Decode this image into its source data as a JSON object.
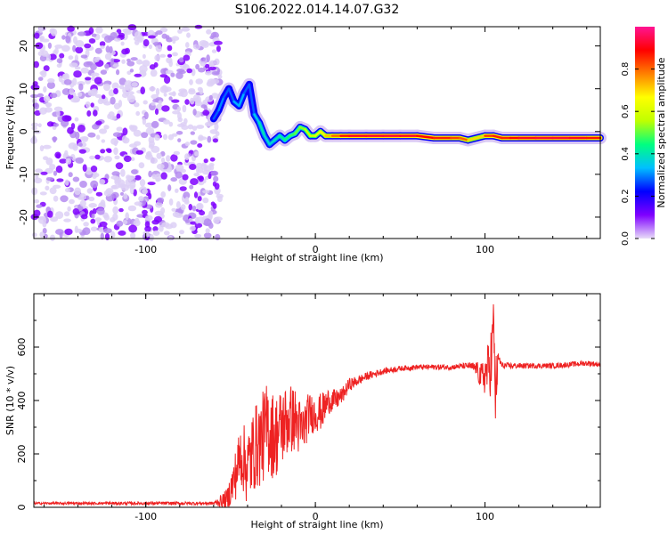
{
  "title": "S106.2022.014.14.07.G32",
  "chart_data": [
    {
      "type": "heatmap",
      "xlabel": "Height of straight line (km)",
      "ylabel": "Frequency (Hz)",
      "xlim": [
        -166,
        168
      ],
      "ylim": [
        -25,
        24.5
      ],
      "xticks": [
        -100,
        0,
        100
      ],
      "yticks": [
        -20,
        -10,
        0,
        10,
        20
      ],
      "colorbar": {
        "label": "Normalized spectral amplitude",
        "range": [
          0,
          1
        ],
        "ticks": [
          0.0,
          0.2,
          0.4,
          0.6,
          0.8
        ],
        "colormap": [
          "#e8dcf8",
          "#7f00ff",
          "#0000ff",
          "#00bfff",
          "#00ff80",
          "#c0ff00",
          "#ffff00",
          "#ff8000",
          "#ff0000",
          "#ff1493"
        ]
      },
      "ridge": {
        "x": [
          -60,
          -57,
          -54,
          -51,
          -48,
          -45,
          -42,
          -39,
          -36,
          -33,
          -30,
          -27,
          -24,
          -21,
          -18,
          -15,
          -12,
          -9,
          -6,
          -3,
          0,
          3,
          6,
          10,
          15,
          20,
          30,
          40,
          50,
          60,
          70,
          80,
          85,
          90,
          95,
          100,
          105,
          110,
          115,
          120,
          130,
          140,
          150,
          160,
          168
        ],
        "freq": [
          3,
          5,
          8,
          10,
          7,
          6,
          9,
          11,
          4,
          2,
          -1,
          -3,
          -2,
          -1,
          -2,
          -1,
          -0.5,
          1,
          0.5,
          -1,
          -1,
          0,
          -1,
          -1,
          -1,
          -1,
          -1,
          -1,
          -1,
          -1,
          -1.5,
          -1.5,
          -1.5,
          -2,
          -1.5,
          -1,
          -1,
          -1.5,
          -1.5,
          -1.5,
          -1.5,
          -1.5,
          -1.5,
          -1.5,
          -1.5
        ],
        "amplitude": [
          0.25,
          0.3,
          0.3,
          0.25,
          0.3,
          0.35,
          0.3,
          0.25,
          0.3,
          0.4,
          0.4,
          0.35,
          0.4,
          0.4,
          0.45,
          0.45,
          0.5,
          0.5,
          0.55,
          0.6,
          0.6,
          0.65,
          0.7,
          0.75,
          0.85,
          0.9,
          0.92,
          0.92,
          0.93,
          0.9,
          0.88,
          0.85,
          0.82,
          0.8,
          0.6,
          0.8,
          0.88,
          0.85,
          0.88,
          0.9,
          0.92,
          0.93,
          0.92,
          0.9,
          0.85
        ]
      },
      "noise_region": [
        -166,
        -60
      ]
    },
    {
      "type": "line",
      "xlabel": "Height of straight line (km)",
      "ylabel": "SNR (10 * v/v)",
      "xlim": [
        -166,
        168
      ],
      "ylim": [
        0,
        800
      ],
      "xticks": [
        -100,
        0,
        100
      ],
      "yticks": [
        0,
        200,
        400,
        600
      ],
      "color": "#ee2222",
      "series": [
        {
          "x": [
            -166,
            -100,
            -60,
            -52,
            -48,
            -44,
            -40,
            -36,
            -32,
            -28,
            -24,
            -20,
            -16,
            -12,
            -8,
            -4,
            0,
            4,
            8,
            12,
            16,
            20,
            24,
            30,
            40,
            50,
            60,
            70,
            80,
            90,
            95,
            98,
            100,
            102,
            104,
            105,
            106,
            108,
            110,
            120,
            130,
            140,
            150,
            160,
            168
          ],
          "y": [
            15,
            15,
            15,
            30,
            100,
            200,
            150,
            220,
            250,
            300,
            260,
            300,
            330,
            330,
            280,
            350,
            350,
            360,
            400,
            400,
            420,
            460,
            470,
            490,
            510,
            520,
            525,
            525,
            525,
            530,
            520,
            480,
            500,
            520,
            560,
            740,
            420,
            560,
            530,
            530,
            530,
            530,
            535,
            540,
            535
          ],
          "noise": [
            4,
            6,
            6,
            40,
            90,
            120,
            150,
            160,
            170,
            180,
            160,
            150,
            140,
            120,
            110,
            80,
            70,
            70,
            50,
            40,
            30,
            25,
            20,
            15,
            12,
            10,
            10,
            10,
            10,
            12,
            25,
            60,
            80,
            100,
            150,
            30,
            160,
            20,
            12,
            10,
            10,
            10,
            10,
            10,
            10
          ]
        }
      ]
    }
  ]
}
